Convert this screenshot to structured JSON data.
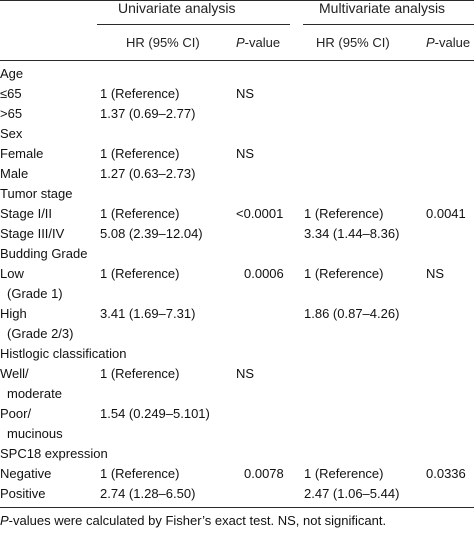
{
  "header": {
    "univariate": "Univariate analysis",
    "multivariate": "Multivariate analysis",
    "hr_label": "HR (95% CI)",
    "p_italic": "P",
    "p_rest": "-value"
  },
  "rows": {
    "r0": {
      "label": "Age",
      "uhr": "",
      "up": "",
      "mhr": "",
      "mp": ""
    },
    "r1": {
      "label": "≤65",
      "uhr": "1 (Reference)",
      "up": "NS",
      "mhr": "",
      "mp": ""
    },
    "r2": {
      "label": ">65",
      "uhr": "1.37 (0.69–2.77)",
      "up": "",
      "mhr": "",
      "mp": ""
    },
    "r3": {
      "label": "Sex",
      "uhr": "",
      "up": "",
      "mhr": "",
      "mp": ""
    },
    "r4": {
      "label": "Female",
      "uhr": "1 (Reference)",
      "up": "NS",
      "mhr": "",
      "mp": ""
    },
    "r5": {
      "label": "Male",
      "uhr": "1.27 (0.63–2.73)",
      "up": "",
      "mhr": "",
      "mp": ""
    },
    "r6": {
      "label": "Tumor stage",
      "uhr": "",
      "up": "",
      "mhr": "",
      "mp": ""
    },
    "r7": {
      "label": "Stage I/II",
      "uhr": "1 (Reference)",
      "up": "<0.0001",
      "mhr": "1 (Reference)",
      "mp": "0.0041"
    },
    "r8": {
      "label": "Stage III/IV",
      "uhr": "5.08 (2.39–12.04)",
      "up": "",
      "mhr": "3.34 (1.44–8.36)",
      "mp": ""
    },
    "r9": {
      "label": "Budding Grade",
      "uhr": "",
      "up": "",
      "mhr": "",
      "mp": ""
    },
    "r10": {
      "label": "Low",
      "uhr": "1 (Reference)",
      "up": "0.0006",
      "mhr": "1 (Reference)",
      "mp": "NS"
    },
    "r11": {
      "label": "(Grade 1)",
      "uhr": "",
      "up": "",
      "mhr": "",
      "mp": ""
    },
    "r12": {
      "label": "High",
      "uhr": "3.41 (1.69–7.31)",
      "up": "",
      "mhr": "1.86 (0.87–4.26)",
      "mp": ""
    },
    "r13": {
      "label": "(Grade 2/3)",
      "uhr": "",
      "up": "",
      "mhr": "",
      "mp": ""
    },
    "r14": {
      "label": "Histlogic classification",
      "uhr": "",
      "up": "",
      "mhr": "",
      "mp": ""
    },
    "r15": {
      "label": "Well/",
      "uhr": "1 (Reference)",
      "up": "NS",
      "mhr": "",
      "mp": ""
    },
    "r16": {
      "label": "moderate",
      "uhr": "",
      "up": "",
      "mhr": "",
      "mp": ""
    },
    "r17": {
      "label": "Poor/",
      "uhr": "1.54 (0.249–5.101)",
      "up": "",
      "mhr": "",
      "mp": ""
    },
    "r18": {
      "label": "mucinous",
      "uhr": "",
      "up": "",
      "mhr": "",
      "mp": ""
    },
    "r19": {
      "label": "SPC18 expression",
      "uhr": "",
      "up": "",
      "mhr": "",
      "mp": ""
    },
    "r20": {
      "label": "Negative",
      "uhr": "1 (Reference)",
      "up": "0.0078",
      "mhr": "1 (Reference)",
      "mp": "0.0336"
    },
    "r21": {
      "label": "Positive",
      "uhr": "2.74 (1.28–6.50)",
      "up": "",
      "mhr": "2.47 (1.06–5.44)",
      "mp": ""
    }
  },
  "footnote": {
    "p_italic": "P",
    "rest": "-values were calculated by Fisher’s exact test. NS, not significant."
  }
}
